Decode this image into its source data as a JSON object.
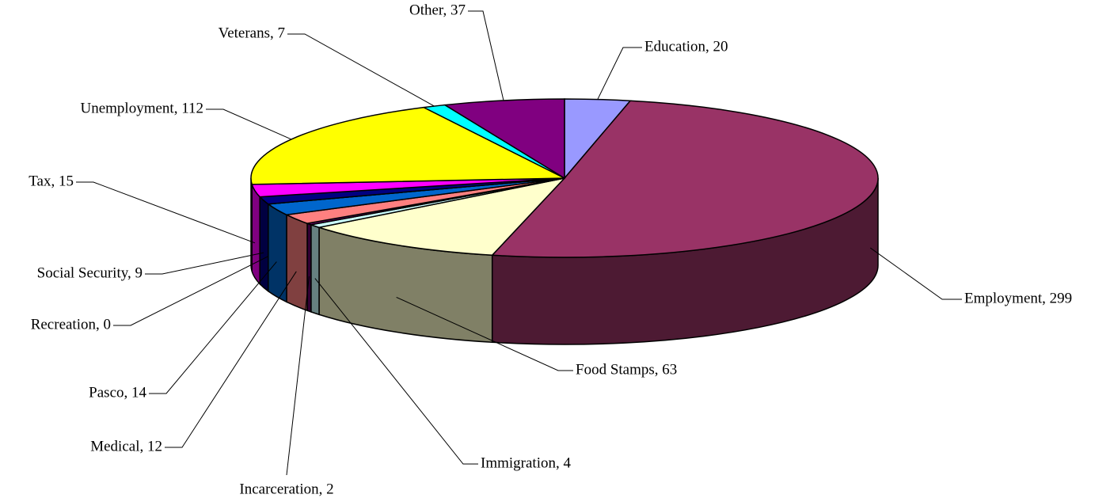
{
  "chart_data": {
    "type": "pie3d",
    "values": [
      20,
      299,
      63,
      4,
      2,
      12,
      14,
      0,
      9,
      15,
      112,
      7,
      37
    ],
    "value_labels": [
      "Education, 20",
      "Employment, 299",
      "Food Stamps, 63",
      "Immigration, 4",
      "Incarceration, 2",
      "Medical, 12",
      "Pasco, 14",
      "Recreation, 0",
      "Social Security, 9",
      "Tax, 15",
      "Unemployment, 112",
      "Veterans, 7",
      "Other, 37"
    ],
    "colors": [
      "#9999ff",
      "#993366",
      "#ffffcc",
      "#ccffff",
      "#660066",
      "#ff8080",
      "#0066cc",
      "#ccccff",
      "#000080",
      "#ff00ff",
      "#ffff00",
      "#00ffff",
      "#800080"
    ]
  }
}
